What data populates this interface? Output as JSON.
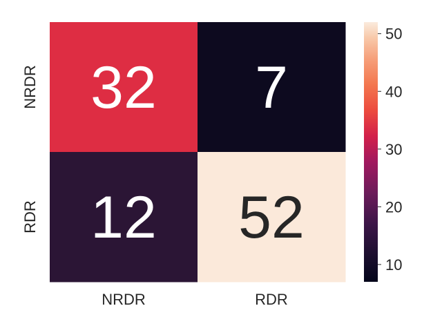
{
  "chart_data": {
    "type": "heatmap",
    "title": "",
    "xlabel": "",
    "ylabel": "",
    "row_labels": [
      "NRDR",
      "RDR"
    ],
    "col_labels": [
      "NRDR",
      "RDR"
    ],
    "values": [
      [
        32,
        7
      ],
      [
        12,
        52
      ]
    ],
    "colorbar": {
      "min": 7,
      "max": 52,
      "ticks": [
        10,
        20,
        30,
        40,
        50
      ],
      "colormap": "rocket"
    },
    "cell_colors": [
      [
        "#de2d43",
        "#0d0a1f"
      ],
      [
        "#2b1535",
        "#fbe9da"
      ]
    ],
    "annotation_colors": [
      [
        "#ffffff",
        "#ffffff"
      ],
      [
        "#ffffff",
        "#262626"
      ]
    ],
    "grid": false,
    "legend": "colorbar-right"
  }
}
